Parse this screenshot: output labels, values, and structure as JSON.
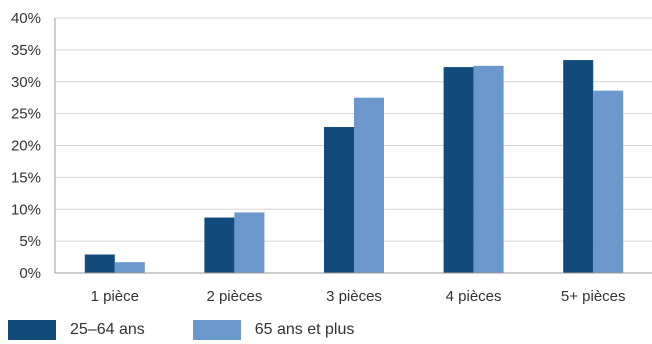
{
  "chart_data": {
    "type": "bar",
    "categories": [
      "1 pièce",
      "2 pièces",
      "3 pièces",
      "4 pièces",
      "5+ pièces"
    ],
    "series": [
      {
        "name": "25–64 ans",
        "values": [
          2.9,
          8.7,
          22.9,
          32.3,
          33.4
        ],
        "color": "#134a7c"
      },
      {
        "name": "65 ans et plus",
        "values": [
          1.7,
          9.5,
          27.5,
          32.5,
          28.6
        ],
        "color": "#6b97cd"
      }
    ],
    "yticks": [
      "0%",
      "5%",
      "10%",
      "15%",
      "20%",
      "25%",
      "30%",
      "35%",
      "40%"
    ],
    "ylim": [
      0,
      40
    ],
    "grid": true,
    "legend_position": "bottom-left",
    "title": "",
    "xlabel": "",
    "ylabel": ""
  }
}
